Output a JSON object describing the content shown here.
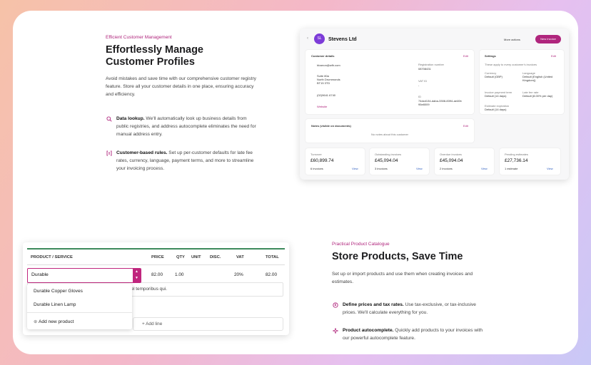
{
  "customers_section": {
    "eyebrow": "Efficient Customer Management",
    "title": "Effortlessly Manage Customer Profiles",
    "body": "Avoid mistakes and save time with our comprehensive customer registry feature. Store all your customer details in one place, ensuring accuracy and efficiency.",
    "features": [
      {
        "title": "Data lookup.",
        "text": "We'll automatically look up business details from public registries, and address autocomplete eliminates the need for manual address entry."
      },
      {
        "title": "Customer-based rules.",
        "text": "Set up per-customer defaults for late fee rates, currency, language, payment terms, and more to streamline your invoicing process."
      }
    ]
  },
  "customer_app": {
    "avatar": "SL",
    "name": "Stevens Ltd",
    "more_actions": "More actions",
    "new_invoice": "New Invoice",
    "details": {
      "title": "Customer details",
      "edit": "Edit",
      "email": "hbarron@wfh.com",
      "address": [
        "Suite 80a",
        "North Drummonds",
        "BT15 3TD"
      ],
      "phone": "(02)9641 6740",
      "website": "Website",
      "registration_label": "Registration number",
      "registration": "08708431",
      "vat_label": "VAT ID",
      "vat": "-",
      "id_label": "ID",
      "id": "74dcd134-daba-3308-8394-ae40b95e8009"
    },
    "settings": {
      "title": "Settings",
      "edit": "Edit",
      "note": "These apply to every customer's invoices",
      "items": [
        {
          "label": "Currency",
          "value": "Default (GBP)"
        },
        {
          "label": "Language",
          "value": "Default (English (United Kingdom))"
        },
        {
          "label": "Invoice payment term",
          "value": "Default (14 days)"
        },
        {
          "label": "Late fee rate",
          "value": "Default (8.00% per day)"
        },
        {
          "label": "Estimate expiration",
          "value": "Default (14 days)"
        }
      ]
    },
    "notes": {
      "title": "Notes (visible on documents)",
      "edit": "Edit",
      "empty": "No notes about this customer"
    },
    "stats": [
      {
        "label": "Turnover",
        "amount": "£60,899.74",
        "count": "6 invoices",
        "link": "View"
      },
      {
        "label": "Outstanding invoices",
        "amount": "£45,094.04",
        "count": "3 invoices",
        "link": "View"
      },
      {
        "label": "Overdue invoices",
        "amount": "£45,094.04",
        "count": "2 invoices",
        "link": "View"
      },
      {
        "label": "Pending estimates",
        "amount": "£27,736.14",
        "count": "1 estimate",
        "link": "View"
      }
    ]
  },
  "product_table": {
    "headers": [
      "PRODUCT / SERVICE",
      "PRICE",
      "QTY",
      "UNIT",
      "DISC.",
      "VAT",
      "TOTAL"
    ],
    "row": {
      "input": "Durable",
      "price": "82.00",
      "qty": "1.00",
      "vat": "20%",
      "total": "82.00"
    },
    "description": "n vel temporibus qui.",
    "suggestions": [
      "Durable Copper Gloves",
      "Durable Linen Lamp"
    ],
    "add_product": "Add new product",
    "add_line": "Add line"
  },
  "products_section": {
    "eyebrow": "Practical Product Catalogue",
    "title": "Store Products, Save Time",
    "body": "Set up or import products and use them when creating invoices and estimates.",
    "features": [
      {
        "title": "Define prices and tax rates.",
        "text": "Use tax-exclusive, or tax-inclusive prices. We'll calculate everything for you."
      },
      {
        "title": "Product autocomplete.",
        "text": "Quickly add products to your invoices with our powerful autocomplete feature."
      }
    ]
  }
}
